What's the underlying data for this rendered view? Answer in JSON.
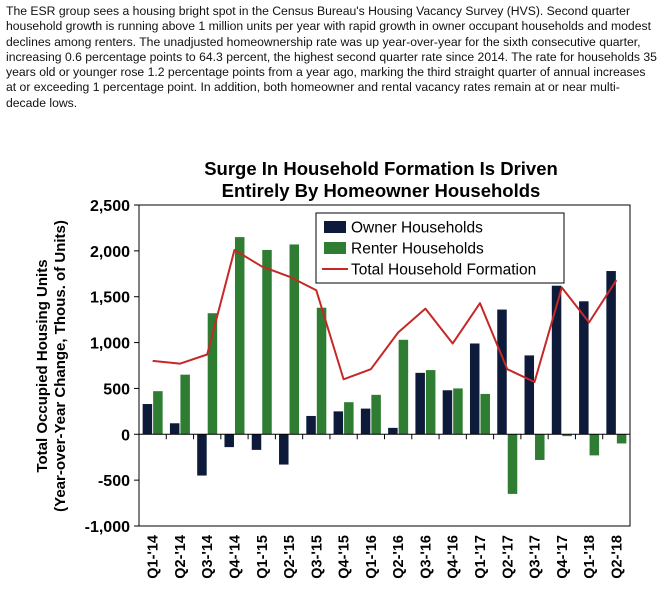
{
  "intro_text": "The ESR group sees a housing bright spot in the Census Bureau's Housing Vacancy Survey (HVS). Second quarter household growth is running above 1 million units per year with rapid growth in owner occupant households and modest declines among renters. The unadjusted homeownership rate was up year-over-year for the sixth consecutive quarter, increasing 0.6 percentage points to 64.3 percent, the highest second quarter rate since 2014. The rate for households 35 years old or younger rose 1.2 percentage points from a year ago, marking the third straight quarter of annual increases at or exceeding 1 percentage point. In addition, both homeowner and rental vacancy rates remain at or near multi-decade lows.",
  "colors": {
    "owner": "#0d1a3a",
    "renter": "#2e7d32",
    "total": "#c62828"
  },
  "chart_data": {
    "type": "bar",
    "title_line1": "Surge In Household Formation Is Driven",
    "title_line2": "Entirely By Homeowner Households",
    "ylabel_line1": "Total Occupied Housing Units",
    "ylabel_line2": "(Year-over-Year Change, Thous. of Units)",
    "xlabel": "",
    "ylim": [
      -1000,
      2500
    ],
    "yticks": [
      -1000,
      -500,
      0,
      500,
      1000,
      1500,
      2000,
      2500
    ],
    "ytick_labels": [
      "-1,000",
      "-500",
      "0",
      "500",
      "1,000",
      "1,500",
      "2,000",
      "2,500"
    ],
    "grid": false,
    "legend_position": "top-right",
    "categories": [
      "Q1-'14",
      "Q2-'14",
      "Q3-'14",
      "Q4-'14",
      "Q1-'15",
      "Q2-'15",
      "Q3-'15",
      "Q4-'15",
      "Q1-'16",
      "Q2-'16",
      "Q3-'16",
      "Q4-'16",
      "Q1-'17",
      "Q2-'17",
      "Q3-'17",
      "Q4-'17",
      "Q1-'18",
      "Q2-'18"
    ],
    "series": [
      {
        "name": "Owner Households",
        "kind": "bar",
        "values": [
          330,
          120,
          -450,
          -140,
          -170,
          -330,
          200,
          250,
          280,
          70,
          670,
          480,
          990,
          1360,
          860,
          1620,
          1450,
          1780
        ]
      },
      {
        "name": "Renter Households",
        "kind": "bar",
        "values": [
          470,
          650,
          1320,
          2150,
          2010,
          2070,
          1380,
          350,
          430,
          1030,
          700,
          500,
          440,
          -650,
          -280,
          -20,
          -230,
          -100
        ]
      },
      {
        "name": "Total Household Formation",
        "kind": "line",
        "values": [
          800,
          770,
          870,
          2010,
          1830,
          1720,
          1570,
          600,
          710,
          1110,
          1370,
          990,
          1430,
          710,
          570,
          1600,
          1220,
          1680
        ]
      }
    ]
  }
}
